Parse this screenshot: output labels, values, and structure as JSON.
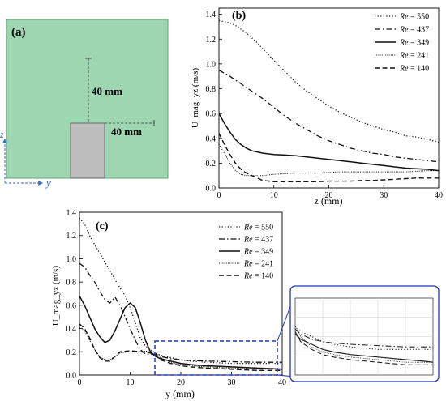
{
  "colors": {
    "green_fill": "#9fd6b2",
    "green_border": "#6a9d7a",
    "obstacle_fill": "#bdbdbd",
    "axis_blue": "#3a6ec8",
    "zoom_box": "#2035b8",
    "lines": "#111111"
  },
  "panel_a": {
    "label": "(a)",
    "dim_vertical": "40 mm",
    "dim_horizontal": "40 mm",
    "axis_y": "y",
    "axis_z": "z"
  },
  "chart_data": [
    {
      "type": "line",
      "panel_label": "(b)",
      "xlabel": "z (mm)",
      "ylabel": "U_mag_yz (m/s)",
      "xlim": [
        0,
        40
      ],
      "ylim": [
        0,
        1.45
      ],
      "xticks": [
        "0",
        "10",
        "20",
        "30",
        "40"
      ],
      "yticks": [
        "0.0",
        "0.2",
        "0.4",
        "0.6",
        "0.8",
        "1.0",
        "1.2",
        "1.4"
      ],
      "legend_position": "top-right",
      "series": [
        {
          "name": "Re = 550",
          "dash": "dot",
          "x": [
            0,
            1,
            2,
            3,
            4,
            5,
            6,
            7,
            8,
            10,
            12,
            14,
            16,
            18,
            20,
            22,
            24,
            26,
            28,
            30,
            32,
            34,
            36,
            38,
            40
          ],
          "y": [
            1.35,
            1.34,
            1.33,
            1.31,
            1.28,
            1.25,
            1.21,
            1.17,
            1.12,
            1.03,
            0.94,
            0.85,
            0.78,
            0.72,
            0.66,
            0.61,
            0.57,
            0.53,
            0.5,
            0.47,
            0.45,
            0.42,
            0.41,
            0.39,
            0.37
          ]
        },
        {
          "name": "Re = 437",
          "dash": "dashdot",
          "x": [
            0,
            2,
            4,
            6,
            8,
            10,
            12,
            14,
            16,
            18,
            20,
            22,
            24,
            26,
            28,
            30,
            32,
            34,
            36,
            38,
            40
          ],
          "y": [
            0.95,
            0.9,
            0.84,
            0.78,
            0.72,
            0.65,
            0.58,
            0.52,
            0.47,
            0.42,
            0.38,
            0.35,
            0.32,
            0.3,
            0.28,
            0.27,
            0.25,
            0.24,
            0.23,
            0.22,
            0.21
          ]
        },
        {
          "name": "Re = 349",
          "dash": "solid",
          "x": [
            0,
            1,
            2,
            3,
            4,
            5,
            6,
            7,
            8,
            10,
            12,
            14,
            16,
            18,
            20,
            22,
            24,
            26,
            28,
            30,
            32,
            34,
            36,
            38,
            40
          ],
          "y": [
            0.6,
            0.52,
            0.45,
            0.39,
            0.35,
            0.32,
            0.3,
            0.29,
            0.28,
            0.27,
            0.265,
            0.26,
            0.25,
            0.24,
            0.23,
            0.22,
            0.21,
            0.2,
            0.19,
            0.18,
            0.17,
            0.16,
            0.155,
            0.15,
            0.14
          ]
        },
        {
          "name": "Re = 241",
          "dash": "shortdot",
          "x": [
            0,
            1,
            2,
            3,
            4,
            5,
            6,
            7,
            8,
            10,
            14,
            18,
            22,
            26,
            30,
            34,
            38,
            40
          ],
          "y": [
            0.35,
            0.28,
            0.2,
            0.14,
            0.11,
            0.1,
            0.1,
            0.1,
            0.1,
            0.11,
            0.12,
            0.12,
            0.13,
            0.13,
            0.13,
            0.13,
            0.14,
            0.14
          ]
        },
        {
          "name": "Re = 140",
          "dash": "dash",
          "x": [
            0,
            1,
            2,
            3,
            4,
            5,
            6,
            7,
            8,
            10,
            12,
            14,
            16,
            18,
            20,
            22,
            24,
            26,
            28,
            30,
            32,
            34,
            36,
            38,
            40
          ],
          "y": [
            0.44,
            0.35,
            0.27,
            0.2,
            0.15,
            0.12,
            0.1,
            0.08,
            0.06,
            0.05,
            0.05,
            0.05,
            0.05,
            0.05,
            0.055,
            0.055,
            0.055,
            0.06,
            0.06,
            0.065,
            0.07,
            0.075,
            0.08,
            0.08,
            0.08
          ]
        }
      ]
    },
    {
      "type": "line",
      "panel_label": "(c)",
      "xlabel": "y (mm)",
      "ylabel": "U_mag_yz (m/s)",
      "xlim": [
        0,
        40
      ],
      "ylim": [
        0,
        1.4
      ],
      "xticks": [
        "0",
        "10",
        "20",
        "30",
        "40"
      ],
      "yticks": [
        "0.0",
        "0.2",
        "0.4",
        "0.6",
        "0.8",
        "1.0",
        "1.2",
        "1.4"
      ],
      "legend_position": "top-right",
      "series": [
        {
          "name": "Re = 550",
          "dash": "dot",
          "x": [
            0,
            1,
            2,
            3,
            4,
            5,
            6,
            7,
            8,
            9,
            10,
            11,
            12,
            13,
            14,
            15,
            16,
            18,
            20,
            22,
            25,
            30,
            35,
            38,
            40
          ],
          "y": [
            1.35,
            1.3,
            1.2,
            1.12,
            1.05,
            0.97,
            0.9,
            0.82,
            0.75,
            0.68,
            0.58,
            0.45,
            0.32,
            0.25,
            0.22,
            0.19,
            0.17,
            0.15,
            0.13,
            0.12,
            0.11,
            0.1,
            0.1,
            0.1,
            0.1
          ]
        },
        {
          "name": "Re = 437",
          "dash": "dashdot",
          "x": [
            0,
            1,
            2,
            3,
            4,
            5,
            6,
            7,
            8,
            9,
            10,
            11,
            12,
            13,
            14,
            15,
            16,
            18,
            20,
            22,
            25,
            30,
            35,
            38,
            40
          ],
          "y": [
            0.96,
            0.93,
            0.86,
            0.8,
            0.72,
            0.65,
            0.62,
            0.67,
            0.6,
            0.5,
            0.4,
            0.3,
            0.22,
            0.18,
            0.18,
            0.18,
            0.16,
            0.14,
            0.13,
            0.125,
            0.12,
            0.115,
            0.11,
            0.11,
            0.11
          ]
        },
        {
          "name": "Re = 349",
          "dash": "solid",
          "x": [
            0,
            1,
            2,
            3,
            4,
            5,
            6,
            7,
            8,
            9,
            10,
            11,
            12,
            13,
            14,
            15,
            16,
            18,
            20,
            22,
            25,
            30,
            35,
            38,
            40
          ],
          "y": [
            0.68,
            0.6,
            0.5,
            0.4,
            0.33,
            0.28,
            0.3,
            0.38,
            0.48,
            0.58,
            0.62,
            0.58,
            0.45,
            0.3,
            0.2,
            0.16,
            0.14,
            0.12,
            0.1,
            0.09,
            0.08,
            0.07,
            0.06,
            0.055,
            0.05
          ]
        },
        {
          "name": "Re = 241",
          "dash": "shortdot",
          "x": [
            0,
            1,
            2,
            3,
            4,
            5,
            6,
            7,
            8,
            10,
            12,
            14,
            15,
            16,
            18,
            20,
            22,
            25,
            30,
            35,
            38,
            40
          ],
          "y": [
            0.41,
            0.38,
            0.3,
            0.22,
            0.16,
            0.13,
            0.13,
            0.16,
            0.19,
            0.2,
            0.2,
            0.21,
            0.19,
            0.15,
            0.11,
            0.09,
            0.08,
            0.07,
            0.06,
            0.05,
            0.05,
            0.05
          ]
        },
        {
          "name": "Re = 140",
          "dash": "dash",
          "x": [
            0,
            1,
            2,
            3,
            4,
            5,
            6,
            7,
            8,
            10,
            12,
            14,
            15,
            16,
            18,
            20,
            22,
            25,
            30,
            35,
            38,
            40
          ],
          "y": [
            0.44,
            0.4,
            0.32,
            0.22,
            0.15,
            0.12,
            0.12,
            0.16,
            0.2,
            0.21,
            0.2,
            0.19,
            0.17,
            0.13,
            0.1,
            0.08,
            0.07,
            0.06,
            0.05,
            0.04,
            0.04,
            0.04
          ]
        }
      ]
    }
  ]
}
